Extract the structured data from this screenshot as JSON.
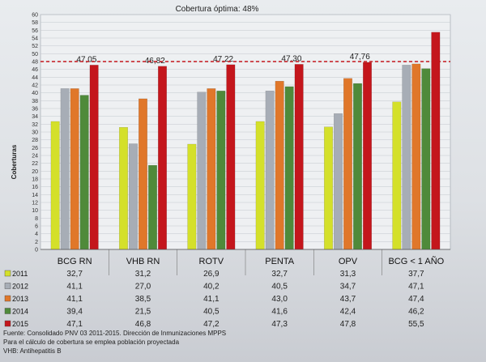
{
  "chart_data": {
    "type": "bar",
    "title": "Cobertura óptima: 48%",
    "ylabel": "Coberturas",
    "ylim": [
      0,
      60
    ],
    "ytick_step": 2,
    "grid": true,
    "optimal_line": 48,
    "categories": [
      "BCG RN",
      "VHB RN",
      "ROTV",
      "PENTA",
      "OPV",
      "BCG < 1 AÑO"
    ],
    "series": [
      {
        "name": "2011",
        "color": "#d4e02a",
        "values": [
          32.7,
          31.2,
          26.9,
          32.7,
          31.3,
          37.7
        ]
      },
      {
        "name": "2012",
        "color": "#a7adb6",
        "values": [
          41.1,
          27.0,
          40.2,
          40.5,
          34.7,
          47.1
        ]
      },
      {
        "name": "2013",
        "color": "#e0772a",
        "values": [
          41.1,
          38.5,
          41.1,
          43.0,
          43.7,
          47.4
        ]
      },
      {
        "name": "2014",
        "color": "#4f8a3a",
        "values": [
          39.4,
          21.5,
          40.5,
          41.6,
          42.4,
          46.2
        ]
      },
      {
        "name": "2015",
        "color": "#c4161c",
        "values": [
          47.1,
          46.8,
          47.2,
          47.3,
          47.8,
          55.5
        ]
      }
    ],
    "top_labels": [
      "47,05",
      "46,82",
      "47,22",
      "47,30",
      "47,76"
    ],
    "table_values": [
      [
        "32,7",
        "31,2",
        "26,9",
        "32,7",
        "31,3",
        "37,7"
      ],
      [
        "41,1",
        "27,0",
        "40,2",
        "40,5",
        "34,7",
        "47,1"
      ],
      [
        "41,1",
        "38,5",
        "41,1",
        "43,0",
        "43,7",
        "47,4"
      ],
      [
        "39,4",
        "21,5",
        "40,5",
        "41,6",
        "42,4",
        "46,2"
      ],
      [
        "47,1",
        "46,8",
        "47,2",
        "47,3",
        "47,8",
        "55,5"
      ]
    ],
    "source_lines": [
      "Fuente: Consolidado PNV 03   2011-2015. Dirección de Inmunizaciones  MPPS",
      "Para el cálculo de cobertura se emplea  población proyectada",
      "VHB: Antihepatitis B"
    ]
  }
}
